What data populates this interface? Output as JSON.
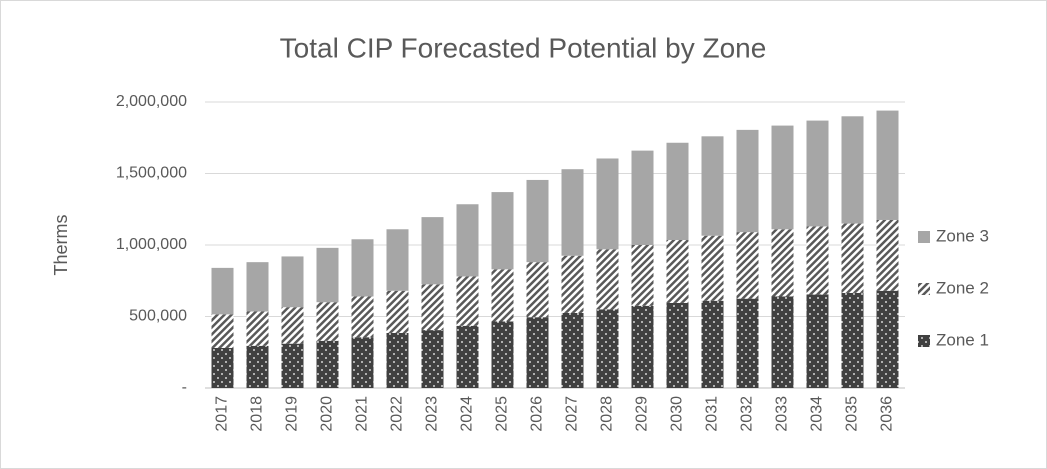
{
  "chart_data": {
    "type": "stacked_bar",
    "title": "Total CIP Forecasted Potential by Zone",
    "y_label": "Therms",
    "categories": [
      "2017",
      "2018",
      "2019",
      "2020",
      "2021",
      "2022",
      "2023",
      "2024",
      "2025",
      "2026",
      "2027",
      "2028",
      "2029",
      "2030",
      "2031",
      "2032",
      "2033",
      "2034",
      "2035",
      "2036"
    ],
    "series": [
      {
        "name": "Zone 1",
        "color": "#404040",
        "pattern": "dots",
        "values": [
          280000,
          295000,
          310000,
          330000,
          355000,
          385000,
          405000,
          435000,
          465000,
          495000,
          525000,
          550000,
          575000,
          595000,
          610000,
          625000,
          640000,
          655000,
          665000,
          680000
        ]
      },
      {
        "name": "Zone 2",
        "color": "#595959",
        "pattern": "hatch",
        "values": [
          235000,
          240000,
          255000,
          270000,
          285000,
          295000,
          320000,
          345000,
          365000,
          385000,
          400000,
          420000,
          425000,
          440000,
          455000,
          465000,
          470000,
          475000,
          485000,
          495000
        ]
      },
      {
        "name": "Zone 3",
        "color": "#a6a6a6",
        "pattern": "solid",
        "values": [
          325000,
          345000,
          355000,
          380000,
          400000,
          430000,
          470000,
          505000,
          540000,
          575000,
          605000,
          635000,
          660000,
          680000,
          695000,
          715000,
          725000,
          740000,
          750000,
          765000
        ]
      }
    ],
    "ylim": [
      0,
      2000000
    ],
    "yticks": [
      {
        "value": 0,
        "label": "-"
      },
      {
        "value": 500000,
        "label": "500,000"
      },
      {
        "value": 1000000,
        "label": "1,000,000"
      },
      {
        "value": 1500000,
        "label": "1,500,000"
      },
      {
        "value": 2000000,
        "label": "2,000,000"
      }
    ],
    "grid": true,
    "legend": "right"
  }
}
